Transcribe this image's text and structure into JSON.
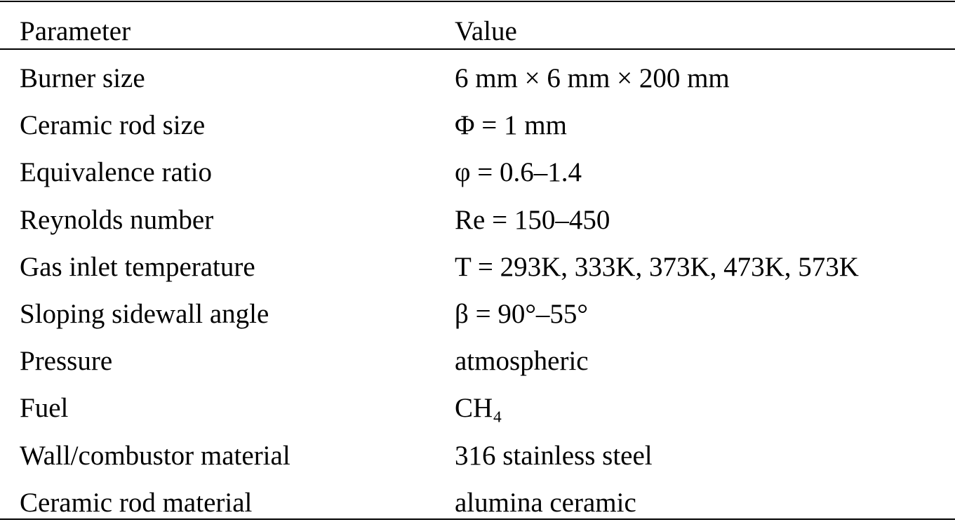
{
  "table": {
    "header": [
      "Parameter",
      "Value"
    ],
    "rows": [
      [
        "Burner size",
        "6 mm × 6 mm × 200 mm"
      ],
      [
        "Ceramic rod size",
        "Φ = 1 mm"
      ],
      [
        "Equivalence ratio",
        "φ = 0.6–1.4"
      ],
      [
        "Reynolds number",
        "Re = 150–450"
      ],
      [
        "Gas inlet temperature",
        "T = 293K, 333K, 373K, 473K, 573K"
      ],
      [
        "Sloping sidewall angle",
        "β = 90°–55°"
      ],
      [
        "Pressure",
        "atmospheric"
      ],
      [
        "Fuel",
        "CH₄"
      ],
      [
        "Wall/combustor material",
        "316 stainless steel"
      ],
      [
        "Ceramic rod material",
        "alumina ceramic"
      ]
    ]
  }
}
